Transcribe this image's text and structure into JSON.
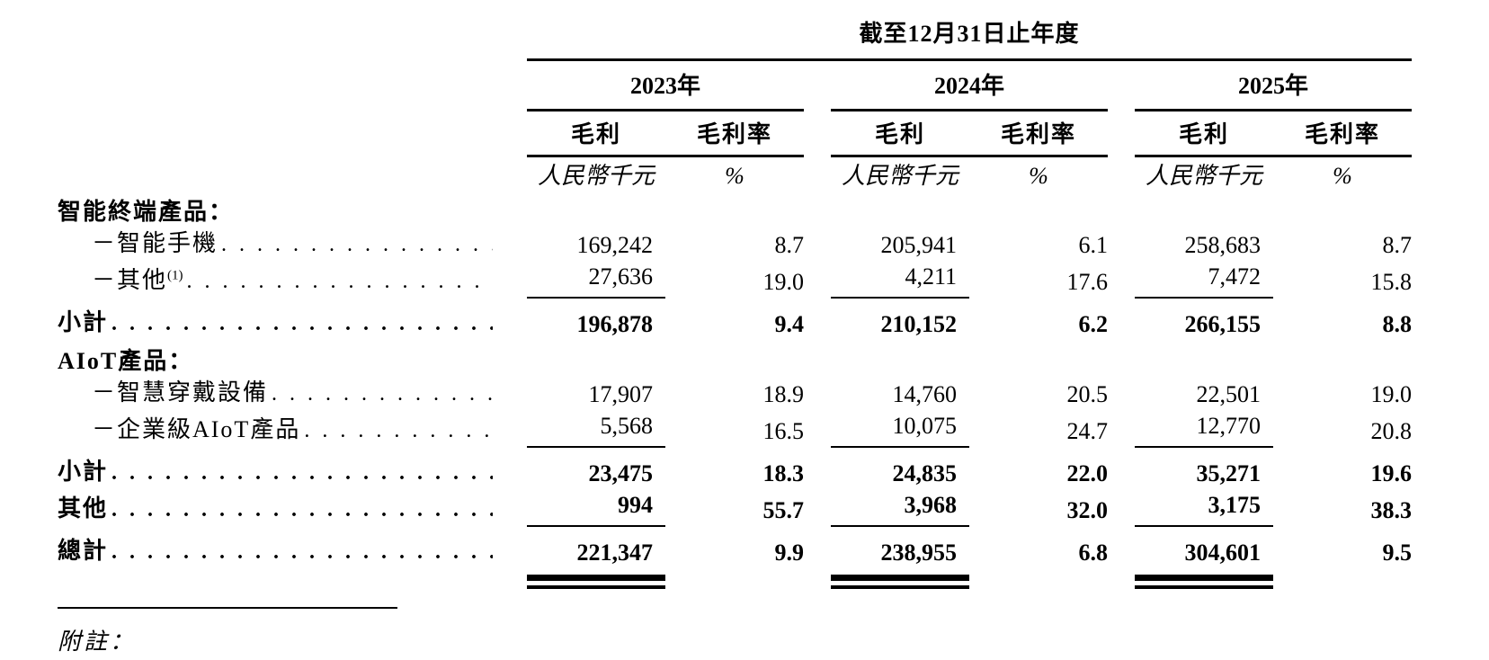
{
  "table": {
    "period_header": "截至12月31日止年度",
    "year_groups": [
      {
        "year": "2023年",
        "col1": "毛利",
        "col2": "毛利率",
        "unit1": "人民幣千元",
        "unit2": "%"
      },
      {
        "year": "2024年",
        "col1": "毛利",
        "col2": "毛利率",
        "unit1": "人民幣千元",
        "unit2": "%"
      },
      {
        "year": "2025年",
        "col1": "毛利",
        "col2": "毛利率",
        "unit1": "人民幣千元",
        "unit2": "%"
      }
    ],
    "rows": [
      {
        "type": "section",
        "label": "智能終端產品："
      },
      {
        "type": "data",
        "label": "－智能手機",
        "values": [
          "169,242",
          "8.7",
          "205,941",
          "6.1",
          "258,683",
          "8.7"
        ]
      },
      {
        "type": "data",
        "label": "－其他",
        "sup": "(1)",
        "values": [
          "27,636",
          "19.0",
          "4,211",
          "17.6",
          "7,472",
          "15.8"
        ]
      },
      {
        "type": "subtotal",
        "label": "小計",
        "values": [
          "196,878",
          "9.4",
          "210,152",
          "6.2",
          "266,155",
          "8.8"
        ]
      },
      {
        "type": "section",
        "label": "AIoT產品："
      },
      {
        "type": "data",
        "label": "－智慧穿戴設備",
        "values": [
          "17,907",
          "18.9",
          "14,760",
          "20.5",
          "22,501",
          "19.0"
        ]
      },
      {
        "type": "data",
        "label": "－企業級AIoT產品",
        "values": [
          "5,568",
          "16.5",
          "10,075",
          "24.7",
          "12,770",
          "20.8"
        ]
      },
      {
        "type": "subtotal",
        "label": "小計",
        "values": [
          "23,475",
          "18.3",
          "24,835",
          "22.0",
          "35,271",
          "19.6"
        ]
      },
      {
        "type": "data-bold",
        "label": "其他",
        "values": [
          "994",
          "55.7",
          "3,968",
          "32.0",
          "3,175",
          "38.3"
        ]
      },
      {
        "type": "total",
        "label": "總計",
        "values": [
          "221,347",
          "9.9",
          "238,955",
          "6.8",
          "304,601",
          "9.5"
        ]
      }
    ],
    "footnote_label": "附註："
  }
}
